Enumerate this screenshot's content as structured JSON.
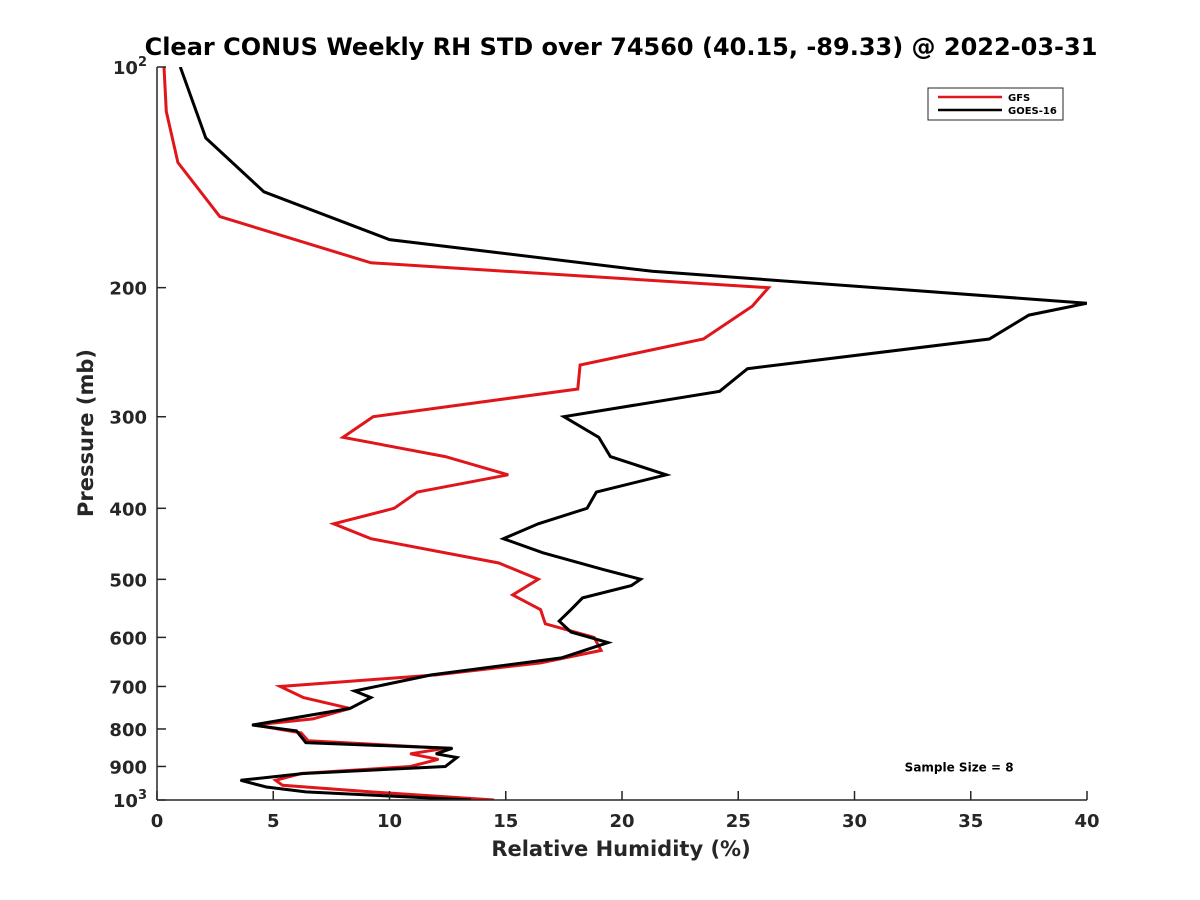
{
  "chart_data": {
    "type": "line",
    "title": "Clear CONUS Weekly RH STD over 74560 (40.15, -89.33) @ 2022-03-31",
    "xlabel": "Relative Humidity (%)",
    "ylabel": "Pressure (mb)",
    "xlim": [
      0,
      40
    ],
    "ylim": [
      100,
      1000
    ],
    "yscale": "log",
    "y_reversed": true,
    "grid": false,
    "legend_position": "top-right",
    "x_ticks": [
      {
        "value": 0,
        "label": "0"
      },
      {
        "value": 5,
        "label": "5"
      },
      {
        "value": 10,
        "label": "10"
      },
      {
        "value": 15,
        "label": "15"
      },
      {
        "value": 20,
        "label": "20"
      },
      {
        "value": 25,
        "label": "25"
      },
      {
        "value": 30,
        "label": "30"
      },
      {
        "value": 35,
        "label": "35"
      },
      {
        "value": 40,
        "label": "40"
      }
    ],
    "y_ticks": [
      {
        "value": 100,
        "label": "10",
        "exponent": "2"
      },
      {
        "value": 200,
        "label": "200"
      },
      {
        "value": 300,
        "label": "300"
      },
      {
        "value": 400,
        "label": "400"
      },
      {
        "value": 500,
        "label": "500"
      },
      {
        "value": 600,
        "label": "600"
      },
      {
        "value": 700,
        "label": "700"
      },
      {
        "value": 800,
        "label": "800"
      },
      {
        "value": 900,
        "label": "900"
      },
      {
        "value": 1000,
        "label": "10",
        "exponent": "3"
      }
    ],
    "series": [
      {
        "name": "GFS",
        "color": "#e0161b",
        "points": [
          [
            0.3,
            100
          ],
          [
            0.4,
            115
          ],
          [
            0.9,
            135
          ],
          [
            2.7,
            160
          ],
          [
            9.2,
            185
          ],
          [
            26.3,
            200
          ],
          [
            25.6,
            212
          ],
          [
            23.5,
            235
          ],
          [
            18.2,
            255
          ],
          [
            18.1,
            275
          ],
          [
            9.3,
            300
          ],
          [
            8.0,
            320
          ],
          [
            12.4,
            340
          ],
          [
            15.1,
            360
          ],
          [
            11.2,
            380
          ],
          [
            10.2,
            400
          ],
          [
            7.6,
            420
          ],
          [
            9.2,
            440
          ],
          [
            14.7,
            475
          ],
          [
            16.4,
            500
          ],
          [
            15.3,
            525
          ],
          [
            16.5,
            550
          ],
          [
            16.7,
            575
          ],
          [
            18.8,
            600
          ],
          [
            19.1,
            625
          ],
          [
            16.5,
            650
          ],
          [
            12.0,
            675
          ],
          [
            5.3,
            700
          ],
          [
            6.3,
            725
          ],
          [
            8.3,
            750
          ],
          [
            6.7,
            775
          ],
          [
            4.2,
            790
          ],
          [
            6.2,
            810
          ],
          [
            6.5,
            830
          ],
          [
            12.4,
            850
          ],
          [
            10.9,
            865
          ],
          [
            12.1,
            880
          ],
          [
            10.9,
            900
          ],
          [
            6.2,
            920
          ],
          [
            5.1,
            940
          ],
          [
            5.4,
            955
          ],
          [
            9.2,
            975
          ],
          [
            14.5,
            1000
          ]
        ]
      },
      {
        "name": "GOES-16",
        "color": "#000000",
        "points": [
          [
            1.0,
            100
          ],
          [
            2.1,
            125
          ],
          [
            4.6,
            148
          ],
          [
            10.0,
            172
          ],
          [
            21.3,
            190
          ],
          [
            40.0,
            210
          ],
          [
            37.5,
            218
          ],
          [
            35.8,
            235
          ],
          [
            25.4,
            258
          ],
          [
            24.2,
            277
          ],
          [
            17.5,
            300
          ],
          [
            19.0,
            320
          ],
          [
            19.5,
            340
          ],
          [
            21.9,
            360
          ],
          [
            18.9,
            380
          ],
          [
            18.5,
            400
          ],
          [
            16.4,
            420
          ],
          [
            14.9,
            440
          ],
          [
            16.6,
            460
          ],
          [
            19.2,
            485
          ],
          [
            20.8,
            500
          ],
          [
            20.4,
            510
          ],
          [
            18.3,
            530
          ],
          [
            17.8,
            550
          ],
          [
            17.3,
            570
          ],
          [
            17.8,
            590
          ],
          [
            19.4,
            610
          ],
          [
            17.4,
            640
          ],
          [
            11.8,
            675
          ],
          [
            8.5,
            710
          ],
          [
            9.2,
            725
          ],
          [
            8.3,
            750
          ],
          [
            4.1,
            790
          ],
          [
            6.0,
            805
          ],
          [
            6.4,
            835
          ],
          [
            12.7,
            850
          ],
          [
            12.0,
            865
          ],
          [
            12.9,
            875
          ],
          [
            12.4,
            900
          ],
          [
            6.3,
            920
          ],
          [
            3.6,
            940
          ],
          [
            4.7,
            960
          ],
          [
            6.4,
            975
          ],
          [
            13.5,
            1000
          ]
        ]
      }
    ],
    "annotations": [
      {
        "text": "Sample Size = 8",
        "x": 34.5,
        "y": 900
      }
    ]
  }
}
